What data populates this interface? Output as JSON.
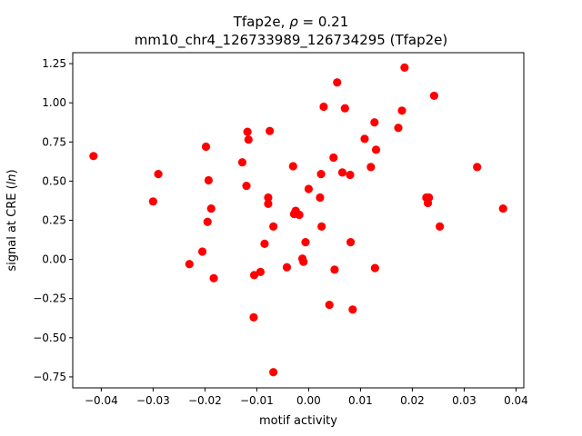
{
  "chart_data": {
    "type": "scatter",
    "title_line1_prefix": "Tfap2e, ",
    "title_line1_rho": "ρ",
    "title_line1_suffix": " = 0.21",
    "title_line2": "mm10_chr4_126733989_126734295 (Tfap2e)",
    "xlabel": "motif activity",
    "ylabel_prefix": "signal at CRE (",
    "ylabel_italic": "ln",
    "ylabel_suffix": ")",
    "xlim": [
      -0.0455,
      0.0415
    ],
    "ylim": [
      -0.82,
      1.32
    ],
    "xticks": [
      -0.04,
      -0.03,
      -0.02,
      -0.01,
      0.0,
      0.01,
      0.02,
      0.03,
      0.04
    ],
    "xtick_labels": [
      "−0.04",
      "−0.03",
      "−0.02",
      "−0.01",
      "0.00",
      "0.01",
      "0.02",
      "0.03",
      "0.04"
    ],
    "yticks": [
      -0.75,
      -0.5,
      -0.25,
      0.0,
      0.25,
      0.5,
      0.75,
      1.0,
      1.25
    ],
    "ytick_labels": [
      "−0.75",
      "−0.50",
      "−0.25",
      "0.00",
      "0.25",
      "0.50",
      "0.75",
      "1.00",
      "1.25"
    ],
    "grid": false,
    "point_color": "#ff0000",
    "points": [
      [
        -0.0415,
        0.66
      ],
      [
        -0.03,
        0.37
      ],
      [
        -0.029,
        0.545
      ],
      [
        -0.023,
        -0.03
      ],
      [
        -0.0205,
        0.05
      ],
      [
        -0.0198,
        0.72
      ],
      [
        -0.0195,
        0.24
      ],
      [
        -0.0193,
        0.505
      ],
      [
        -0.0188,
        0.325
      ],
      [
        -0.0183,
        -0.12
      ],
      [
        -0.0128,
        0.62
      ],
      [
        -0.012,
        0.47
      ],
      [
        -0.0118,
        0.815
      ],
      [
        -0.0116,
        0.765
      ],
      [
        -0.0106,
        -0.37
      ],
      [
        -0.0105,
        -0.1
      ],
      [
        -0.0093,
        -0.08
      ],
      [
        -0.0085,
        0.1
      ],
      [
        -0.0078,
        0.395
      ],
      [
        -0.0078,
        0.355
      ],
      [
        -0.0075,
        0.82
      ],
      [
        -0.0068,
        0.21
      ],
      [
        -0.0068,
        -0.72
      ],
      [
        -0.0042,
        -0.05
      ],
      [
        -0.003,
        0.595
      ],
      [
        -0.0028,
        0.29
      ],
      [
        -0.0025,
        0.31
      ],
      [
        -0.0018,
        0.285
      ],
      [
        -0.0012,
        0.005
      ],
      [
        -0.001,
        -0.015
      ],
      [
        -0.0006,
        0.11
      ],
      [
        0.0,
        0.45
      ],
      [
        0.0022,
        0.395
      ],
      [
        0.0024,
        0.545
      ],
      [
        0.0025,
        0.21
      ],
      [
        0.0029,
        0.975
      ],
      [
        0.004,
        -0.29
      ],
      [
        0.0048,
        0.65
      ],
      [
        0.005,
        -0.065
      ],
      [
        0.0055,
        1.13
      ],
      [
        0.0065,
        0.555
      ],
      [
        0.007,
        0.965
      ],
      [
        0.008,
        0.54
      ],
      [
        0.0081,
        0.11
      ],
      [
        0.0085,
        -0.32
      ],
      [
        0.0108,
        0.77
      ],
      [
        0.012,
        0.59
      ],
      [
        0.0127,
        0.875
      ],
      [
        0.0128,
        -0.055
      ],
      [
        0.013,
        0.7
      ],
      [
        0.0173,
        0.84
      ],
      [
        0.018,
        0.95
      ],
      [
        0.0185,
        1.225
      ],
      [
        0.0227,
        0.395
      ],
      [
        0.023,
        0.36
      ],
      [
        0.0232,
        0.395
      ],
      [
        0.0242,
        1.045
      ],
      [
        0.0253,
        0.21
      ],
      [
        0.0325,
        0.59
      ],
      [
        0.0375,
        0.325
      ]
    ]
  }
}
